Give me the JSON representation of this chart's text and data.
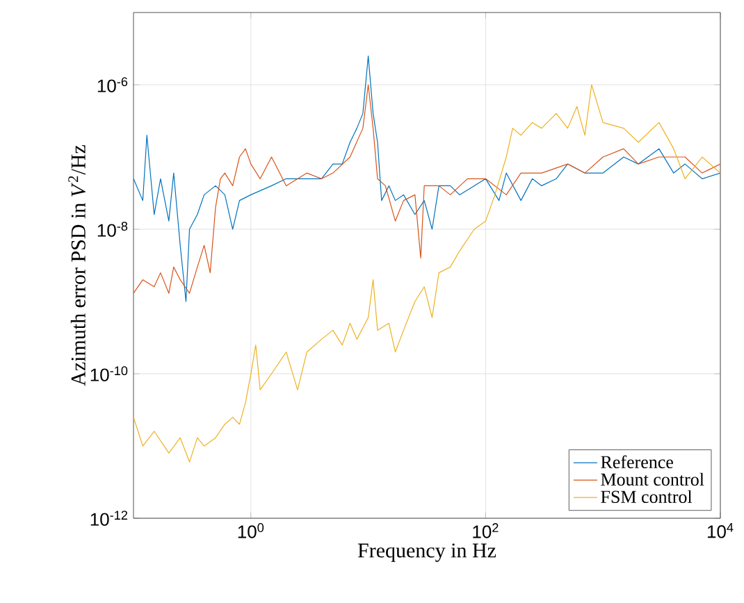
{
  "chart_data": {
    "type": "line",
    "xlabel": "Frequency in Hz",
    "ylabel": "Azimuth error PSD in *V*$^{2}$/Hz",
    "log": "xy",
    "grid": true,
    "legend": "bottom right",
    "line_style": "solid",
    "marker": "none",
    "xlim": [
      0.1,
      10000
    ],
    "ylim": [
      1e-12,
      1e-05
    ],
    "xticks": [
      {
        "value": 1,
        "label": "10$^{0}$"
      },
      {
        "value": 100,
        "label": "10$^{2}$"
      },
      {
        "value": 10000,
        "label": "10$^{4}$"
      }
    ],
    "yticks": [
      {
        "value": 1e-12,
        "label": "10$^{-12}$"
      },
      {
        "value": 1e-10,
        "label": "10$^{-10}$"
      },
      {
        "value": 1e-08,
        "label": "10$^{-8}$"
      },
      {
        "value": 1e-06,
        "label": "10$^{-6}$"
      }
    ],
    "series": [
      {
        "name": "Reference",
        "color": "#0072bd",
        "x": [
          0.1,
          0.12,
          0.13,
          0.15,
          0.17,
          0.2,
          0.22,
          0.25,
          0.28,
          0.3,
          0.35,
          0.4,
          0.5,
          0.6,
          0.7,
          0.8,
          1,
          1.5,
          2,
          3,
          4,
          5,
          6,
          7,
          8,
          9,
          10,
          11,
          12,
          13,
          15,
          17,
          20,
          25,
          30,
          35,
          40,
          50,
          60,
          80,
          100,
          130,
          150,
          200,
          250,
          300,
          400,
          500,
          700,
          1000,
          1500,
          2000,
          3000,
          4000,
          5000,
          7000,
          10000
        ],
        "values": [
          5e-08,
          2.5e-08,
          2e-07,
          1.6e-08,
          5e-08,
          1.3e-08,
          6e-08,
          6e-09,
          1e-09,
          1e-08,
          1.6e-08,
          3e-08,
          4e-08,
          3e-08,
          1e-08,
          2.5e-08,
          3e-08,
          4e-08,
          5e-08,
          5e-08,
          5e-08,
          8e-08,
          8e-08,
          1.6e-07,
          2.5e-07,
          4e-07,
          2.5e-06,
          4e-07,
          1.6e-07,
          2.5e-08,
          4e-08,
          2.5e-08,
          3e-08,
          1.6e-08,
          2.5e-08,
          1e-08,
          4e-08,
          4e-08,
          3e-08,
          4e-08,
          5e-08,
          2.5e-08,
          6e-08,
          2.5e-08,
          5e-08,
          4e-08,
          5e-08,
          8e-08,
          6e-08,
          6e-08,
          1e-07,
          8e-08,
          1.3e-07,
          6e-08,
          8e-08,
          5e-08,
          6e-08
        ]
      },
      {
        "name": "Mount control",
        "color": "#d95319",
        "x": [
          0.1,
          0.12,
          0.15,
          0.17,
          0.2,
          0.22,
          0.25,
          0.3,
          0.35,
          0.4,
          0.45,
          0.5,
          0.55,
          0.6,
          0.7,
          0.8,
          0.9,
          1,
          1.2,
          1.5,
          2,
          3,
          4,
          5,
          7,
          9,
          10,
          11,
          12,
          14,
          17,
          20,
          25,
          28,
          30,
          40,
          50,
          70,
          100,
          150,
          200,
          300,
          500,
          700,
          1000,
          1500,
          2000,
          3000,
          5000,
          7000,
          10000
        ],
        "values": [
          1.3e-09,
          2e-09,
          1.6e-09,
          2.5e-09,
          1.3e-09,
          3e-09,
          2e-09,
          1.3e-09,
          3e-09,
          6e-09,
          2.5e-09,
          2e-08,
          5e-08,
          6e-08,
          4e-08,
          1e-07,
          1.3e-07,
          8e-08,
          5e-08,
          1e-07,
          4e-08,
          6e-08,
          5e-08,
          6e-08,
          1e-07,
          2.5e-07,
          1e-06,
          2.5e-07,
          5e-08,
          4e-08,
          1.3e-08,
          2.5e-08,
          3e-08,
          4e-09,
          4e-08,
          4e-08,
          3e-08,
          5e-08,
          5e-08,
          3e-08,
          6e-08,
          6e-08,
          8e-08,
          6e-08,
          1e-07,
          1.3e-07,
          8e-08,
          1e-07,
          1e-07,
          6e-08,
          8e-08
        ]
      },
      {
        "name": "FSM control",
        "color": "#edb120",
        "x": [
          0.1,
          0.12,
          0.15,
          0.2,
          0.25,
          0.3,
          0.35,
          0.4,
          0.5,
          0.6,
          0.7,
          0.8,
          0.9,
          1,
          1.1,
          1.2,
          1.5,
          2,
          2.5,
          3,
          4,
          5,
          6,
          7,
          8,
          10,
          11,
          12,
          15,
          17,
          20,
          25,
          30,
          35,
          40,
          50,
          60,
          80,
          100,
          120,
          150,
          170,
          200,
          250,
          300,
          400,
          500,
          600,
          700,
          800,
          1000,
          1500,
          2000,
          3000,
          4000,
          5000,
          7000,
          10000
        ],
        "values": [
          2.5e-11,
          1e-11,
          1.6e-11,
          8e-12,
          1.3e-11,
          6e-12,
          1.3e-11,
          1e-11,
          1.3e-11,
          2e-11,
          2.5e-11,
          2e-11,
          4e-11,
          1e-10,
          2.5e-10,
          6e-11,
          1e-10,
          2e-10,
          6e-11,
          2e-10,
          3e-10,
          4e-10,
          2.5e-10,
          5e-10,
          3e-10,
          6e-10,
          2e-09,
          4e-10,
          5e-10,
          2e-10,
          4e-10,
          1e-09,
          1.6e-09,
          6e-10,
          2.5e-09,
          3e-09,
          5e-09,
          1e-08,
          1.3e-08,
          3e-08,
          1e-07,
          2.5e-07,
          2e-07,
          3e-07,
          2.5e-07,
          4e-07,
          2.5e-07,
          5e-07,
          2e-07,
          1e-06,
          3e-07,
          2.5e-07,
          1.6e-07,
          3e-07,
          1.3e-07,
          5e-08,
          1e-07,
          6e-08
        ]
      }
    ]
  }
}
